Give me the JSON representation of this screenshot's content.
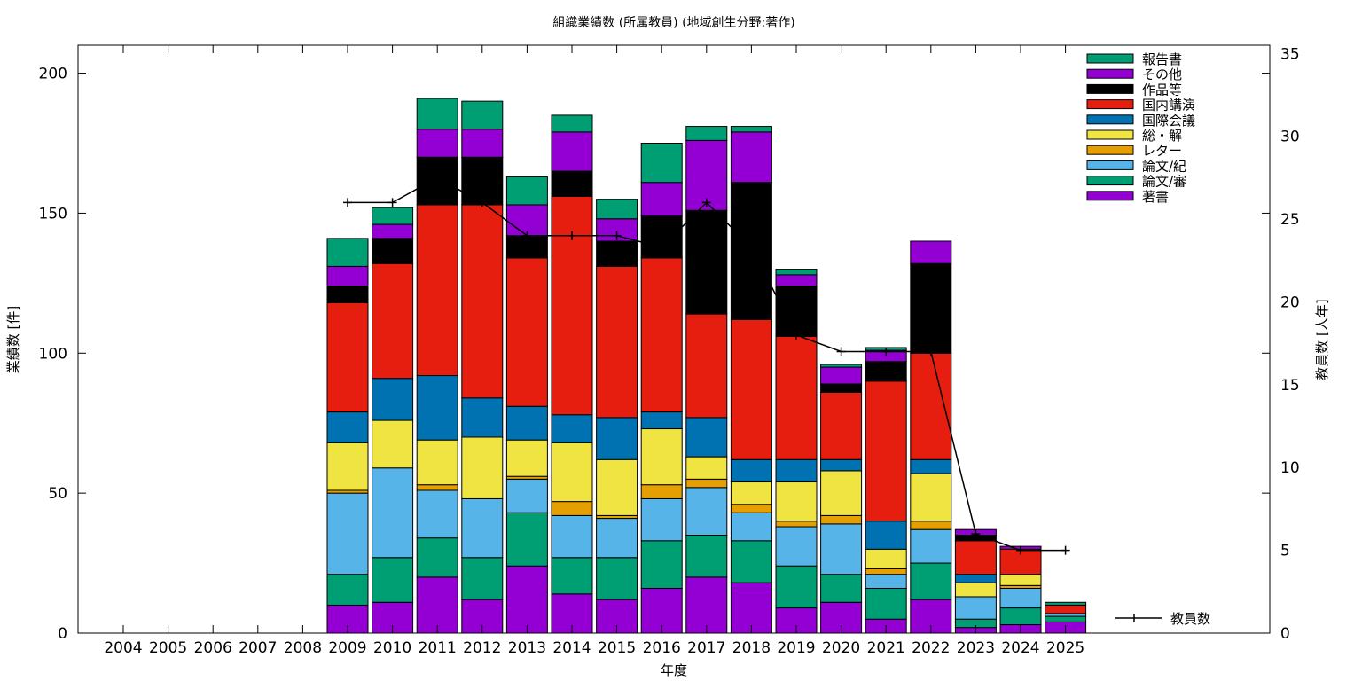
{
  "chart_data": {
    "type": "bar",
    "title": "組織業績数 (所属教員) (地域創生分野:著作)",
    "xlabel": "年度",
    "ylabel": "業績数 [件]",
    "y2label": "教員数 [人年]",
    "ylim": [
      0,
      210
    ],
    "y2lim": [
      0,
      35.5
    ],
    "yticks": [
      0,
      50,
      100,
      150,
      200
    ],
    "y2ticks": [
      0,
      5,
      10,
      15,
      20,
      25,
      30,
      35
    ],
    "stacked": true,
    "categories": [
      "2004",
      "2005",
      "2006",
      "2007",
      "2008",
      "2009",
      "2010",
      "2011",
      "2012",
      "2013",
      "2014",
      "2015",
      "2016",
      "2017",
      "2018",
      "2019",
      "2020",
      "2021",
      "2022",
      "2023",
      "2024",
      "2025"
    ],
    "series": [
      {
        "name": "著書",
        "color": "#9400d3",
        "values": [
          0,
          0,
          0,
          0,
          0,
          10,
          11,
          20,
          12,
          24,
          14,
          12,
          16,
          20,
          18,
          9,
          11,
          5,
          12,
          2,
          3,
          4
        ]
      },
      {
        "name": "論文/審",
        "color": "#009e73",
        "values": [
          0,
          0,
          0,
          0,
          0,
          11,
          16,
          14,
          15,
          19,
          13,
          15,
          17,
          15,
          15,
          15,
          10,
          11,
          13,
          3,
          6,
          2
        ]
      },
      {
        "name": "論文/紀",
        "color": "#56b4e9",
        "values": [
          0,
          0,
          0,
          0,
          0,
          29,
          32,
          17,
          21,
          12,
          15,
          14,
          15,
          17,
          10,
          14,
          18,
          5,
          12,
          8,
          7,
          1
        ]
      },
      {
        "name": "レター",
        "color": "#e69f00",
        "values": [
          0,
          0,
          0,
          0,
          0,
          1,
          0,
          2,
          0,
          1,
          5,
          1,
          5,
          3,
          3,
          2,
          3,
          2,
          3,
          0,
          1,
          0
        ]
      },
      {
        "name": "総・解",
        "color": "#f0e442",
        "values": [
          0,
          0,
          0,
          0,
          0,
          17,
          17,
          16,
          22,
          13,
          21,
          20,
          20,
          8,
          8,
          14,
          16,
          7,
          17,
          5,
          4,
          0
        ]
      },
      {
        "name": "国際会議",
        "color": "#0072b2",
        "values": [
          0,
          0,
          0,
          0,
          0,
          11,
          15,
          23,
          14,
          12,
          10,
          15,
          6,
          14,
          8,
          8,
          4,
          10,
          5,
          3,
          0,
          0
        ]
      },
      {
        "name": "国内講演",
        "color": "#e51e10",
        "values": [
          0,
          0,
          0,
          0,
          0,
          39,
          41,
          61,
          69,
          53,
          78,
          54,
          55,
          37,
          50,
          44,
          24,
          50,
          38,
          12,
          9,
          3
        ]
      },
      {
        "name": "作品等",
        "color": "#000000",
        "values": [
          0,
          0,
          0,
          0,
          0,
          6,
          9,
          17,
          17,
          8,
          9,
          9,
          15,
          37,
          49,
          18,
          3,
          7,
          32,
          2,
          0,
          0
        ]
      },
      {
        "name": "その他",
        "color": "#9400d3",
        "values": [
          0,
          0,
          0,
          0,
          0,
          7,
          5,
          10,
          10,
          11,
          14,
          8,
          12,
          25,
          18,
          4,
          6,
          4,
          8,
          2,
          1,
          0
        ]
      },
      {
        "name": "報告書",
        "color": "#009e73",
        "values": [
          0,
          0,
          0,
          0,
          0,
          10,
          6,
          11,
          10,
          10,
          6,
          7,
          14,
          5,
          2,
          2,
          1,
          1,
          0,
          0,
          0,
          1
        ]
      }
    ],
    "line_series": {
      "name": "教員数",
      "axis": "y2",
      "color": "#000000",
      "x": [
        "2009",
        "2010",
        "2011",
        "2012",
        "2013",
        "2014",
        "2015",
        "2016",
        "2017",
        "2018",
        "2019",
        "2020",
        "2021",
        "2022",
        "2023",
        "2024",
        "2025"
      ],
      "values": [
        26,
        26,
        27.5,
        26,
        24,
        24,
        24,
        23.3,
        26,
        23.3,
        18,
        17,
        17,
        17,
        6,
        5,
        5
      ]
    },
    "legend_position": "top-right",
    "grid": false
  }
}
